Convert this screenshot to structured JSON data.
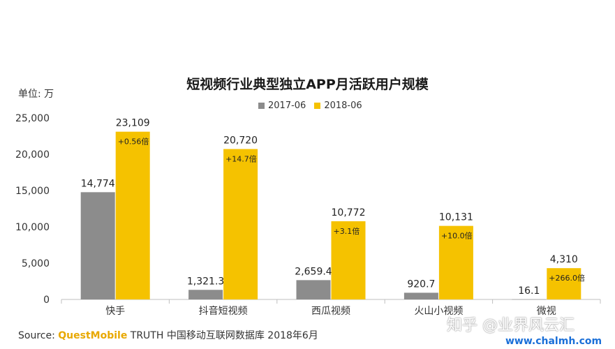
{
  "chart_data": {
    "type": "bar",
    "title": "短视频行业典型独立APP月活跃用户规模",
    "ylabel": "单位: 万",
    "ylim": [
      0,
      25000
    ],
    "yticks": [
      0,
      5000,
      10000,
      15000,
      20000,
      25000
    ],
    "ytick_labels": [
      "0",
      "5,000",
      "10,000",
      "15,000",
      "20,000",
      "25,000"
    ],
    "categories": [
      "快手",
      "抖音短视频",
      "西瓜视频",
      "火山小视频",
      "微视"
    ],
    "series": [
      {
        "name": "2017-06",
        "color": "#8c8c8c",
        "values": [
          14774,
          1321.3,
          2659.4,
          920.7,
          16.1
        ],
        "labels": [
          "14,774",
          "1,321.3",
          "2,659.4",
          "920.7",
          "16.1"
        ]
      },
      {
        "name": "2018-06",
        "color": "#f5c200",
        "values": [
          23109,
          20720,
          10772,
          10131,
          4310
        ],
        "labels": [
          "23,109",
          "20,720",
          "10,772",
          "10,131",
          "4,310"
        ],
        "growth": [
          "+0.56倍",
          "+14.7倍",
          "+3.1倍",
          "+10.0倍",
          "+266.0倍"
        ]
      }
    ],
    "legend_position": "top-center",
    "grid": false
  },
  "source": {
    "prefix": "Source:",
    "brand": "QuestMobile",
    "rest": "TRUTH 中国移动互联网数据库 2018年6月"
  },
  "watermark": {
    "text": "知乎 @业界风云汇",
    "url": "www.chalmh.com"
  }
}
